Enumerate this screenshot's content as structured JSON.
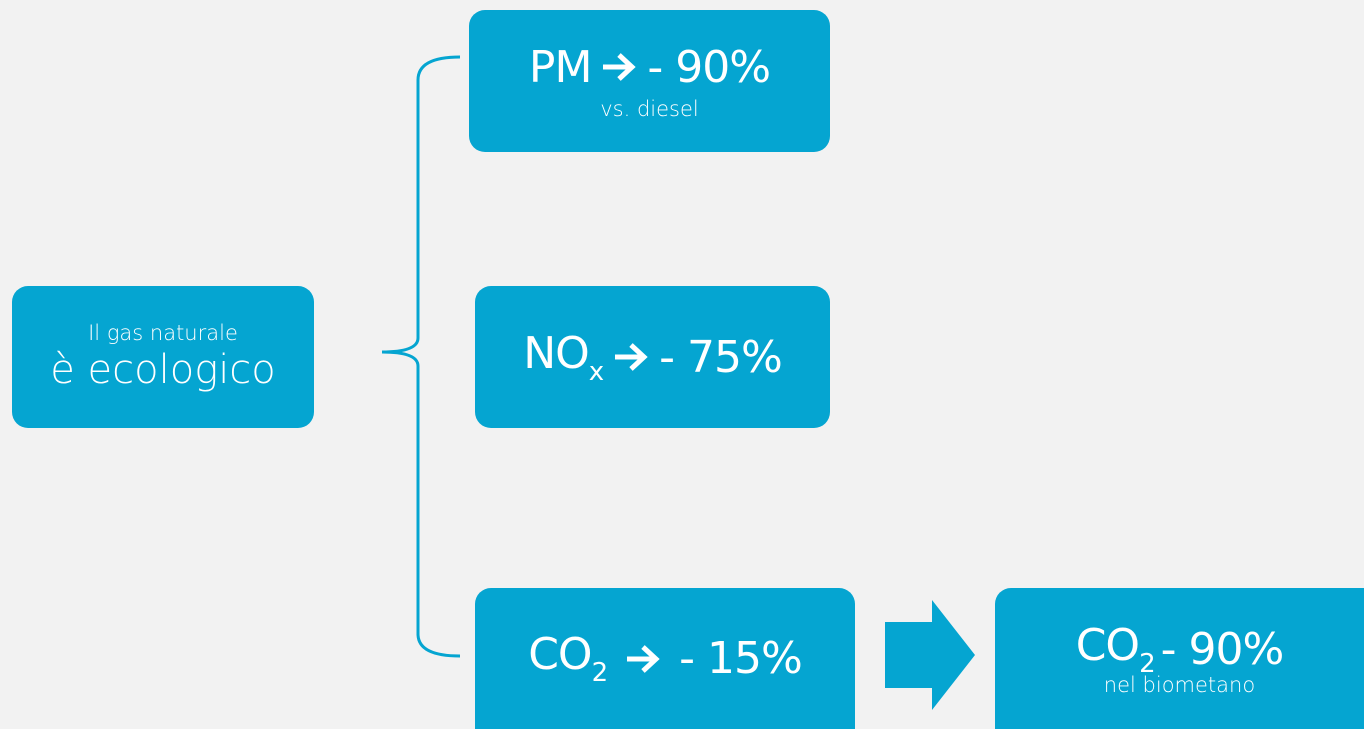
{
  "source": {
    "line1": "Il gas naturale",
    "line2": "è ecologico"
  },
  "effects": [
    {
      "formula": "PM",
      "reduction": "- 90%",
      "note": "vs. diesel"
    },
    {
      "formula": "NO",
      "subscript": "x",
      "reduction": "- 75%"
    },
    {
      "formula": "CO",
      "subscript": "2",
      "reduction": "- 15%"
    }
  ],
  "result": {
    "formula": "CO",
    "subscript": "2",
    "reduction": "- 90%",
    "note": "nel biometano"
  }
}
